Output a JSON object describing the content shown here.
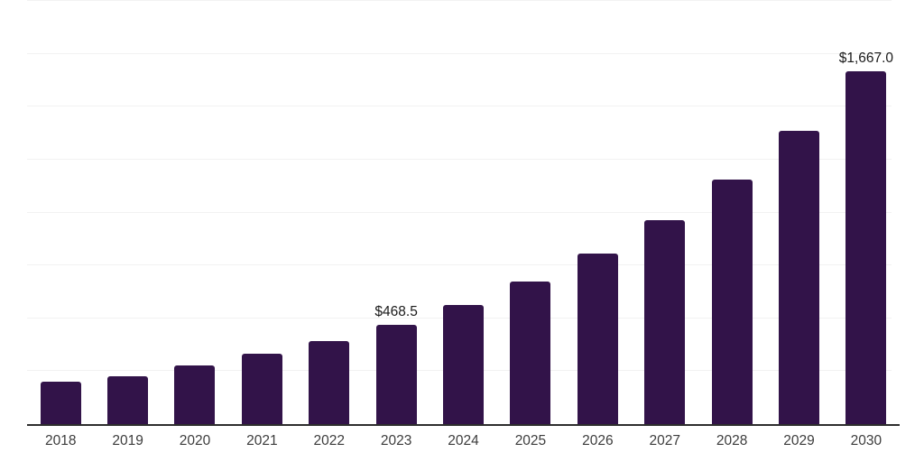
{
  "page": {
    "background": "#ffffff"
  },
  "chart_data": {
    "type": "bar",
    "title": "",
    "xlabel": "",
    "ylabel": "",
    "categories": [
      "2018",
      "2019",
      "2020",
      "2021",
      "2022",
      "2023",
      "2024",
      "2025",
      "2026",
      "2027",
      "2028",
      "2029",
      "2030"
    ],
    "values": [
      198.9,
      224.2,
      276.5,
      332.6,
      392.9,
      468.5,
      561.5,
      673.4,
      805.4,
      964.4,
      1157.1,
      1388.2,
      1667.0
    ],
    "data_labels": {
      "2023": "$468.5",
      "2030": "$1,667.0"
    },
    "ylim": [
      0,
      2000
    ],
    "grid_step": 250,
    "grid": "on",
    "legend": "none",
    "y_axis_tick_labels": "none",
    "colors": {
      "bar": "#321349",
      "gridline": "#f2f2f2",
      "axis_line": "#2d2d2d",
      "tick_label": "#3d3d3d",
      "value_label": "#1a1a1a",
      "background": "#ffffff"
    }
  }
}
